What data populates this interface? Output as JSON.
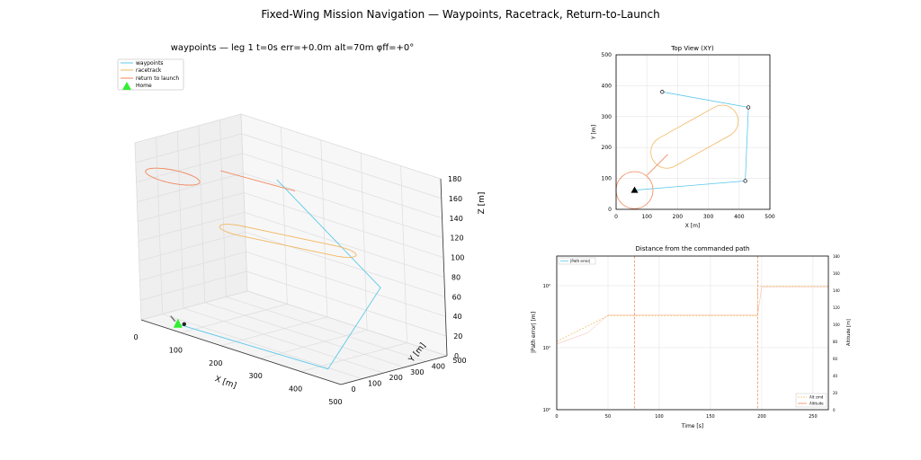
{
  "suptitle": "Fixed-Wing Mission Navigation — Waypoints, Racetrack, Return-to-Launch",
  "colors": {
    "waypoints": "#5bc8ea",
    "racetrack": "#f2b760",
    "rtl": "#f0865a",
    "home": "#33ee33",
    "grid": "#dddddd",
    "pane": "#f2f2f2"
  },
  "chart_data": [
    {
      "type": "line3d",
      "title": "waypoints — leg 1   t=0s  err=+0.0m  alt=70m  φff=+0°",
      "xlabel": "X [m]",
      "ylabel": "Y [m]",
      "zlabel": "Z [m]",
      "xlim": [
        0,
        500
      ],
      "ylim": [
        0,
        500
      ],
      "zlim": [
        0,
        180
      ],
      "xticks": [
        "0",
        "100",
        "200",
        "300",
        "400",
        "500"
      ],
      "yticks": [
        "0",
        "100",
        "200",
        "300",
        "400",
        "500"
      ],
      "zticks": [
        "0",
        "20",
        "40",
        "60",
        "80",
        "100",
        "120",
        "140",
        "160",
        "180"
      ],
      "legend": [
        "waypoints",
        "racetrack",
        "return to launch",
        "Home"
      ],
      "legend_loc": "upper-left",
      "home": {
        "x": 60,
        "y": 60,
        "z": 0
      },
      "series": [
        {
          "name": "waypoints",
          "points": [
            [
              60,
              60,
              0
            ],
            [
              420,
              90,
              0
            ],
            [
              430,
              330,
              70
            ],
            [
              150,
              380,
              140
            ]
          ]
        },
        {
          "name": "racetrack",
          "racetrack": {
            "a": [
              155,
              190
            ],
            "b": [
              350,
              275
            ],
            "r": 45,
            "z": 100
          }
        },
        {
          "name": "return to launch",
          "points": [
            [
              90,
              230,
              150
            ],
            [
              260,
              260,
              150
            ]
          ],
          "circle": {
            "cx": 60,
            "cy": 60,
            "r": 60,
            "z": 150
          }
        }
      ]
    },
    {
      "type": "line",
      "title": "Top View (XY)",
      "xlabel": "X [m]",
      "ylabel": "Y [m]",
      "xlim": [
        0,
        500
      ],
      "ylim": [
        0,
        500
      ],
      "xticks": [
        "0",
        "100",
        "200",
        "300",
        "400",
        "500"
      ],
      "yticks": [
        "0",
        "100",
        "200",
        "300",
        "400",
        "500"
      ],
      "home": {
        "x": 60,
        "y": 62
      },
      "waypoints": [
        [
          60,
          62
        ],
        [
          420,
          92
        ],
        [
          430,
          330
        ],
        [
          150,
          380
        ]
      ],
      "racetrack": {
        "a": [
          165,
          185
        ],
        "b": [
          345,
          285
        ],
        "r": 52
      },
      "rtl": {
        "points": [
          [
            168,
            178
          ],
          [
            100,
            110
          ]
        ],
        "circle": {
          "cx": 60,
          "cy": 62,
          "r": 60
        }
      },
      "grid": true
    },
    {
      "type": "line",
      "title": "Distance from the commanded path",
      "xlabel": "Time [s]",
      "ylabel": "|Path error| [m]",
      "y2label": "Altitude [m]",
      "xlim": [
        0,
        265
      ],
      "ylim_log": [
        1,
        300
      ],
      "y2lim": [
        0,
        180
      ],
      "xticks": [
        "0",
        "50",
        "100",
        "150",
        "200",
        "250"
      ],
      "yticks_log": [
        "10⁰",
        "10¹",
        "10²"
      ],
      "y2ticks": [
        "0",
        "20",
        "40",
        "60",
        "80",
        "100",
        "120",
        "140",
        "160",
        "180"
      ],
      "legend_left": [
        "|Path error|"
      ],
      "legend_right": [
        "Alt cmd",
        "Altitude"
      ],
      "vlines": [
        76,
        196
      ],
      "alt_cmd": {
        "x": [
          0,
          50,
          196,
          196.01,
          265
        ],
        "y": [
          80,
          110,
          110,
          145,
          145
        ]
      },
      "altitude": {
        "x": [
          0,
          30,
          50,
          196,
          200,
          265
        ],
        "y": [
          77,
          90,
          111,
          111,
          144,
          144
        ]
      }
    }
  ]
}
